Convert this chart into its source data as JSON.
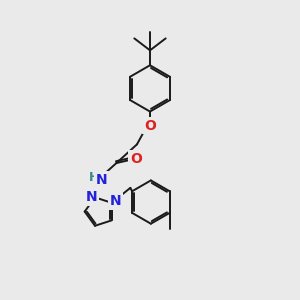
{
  "bg_color": "#eaeaea",
  "bond_color": "#1a1a1a",
  "bond_width": 1.4,
  "fig_size": [
    3.0,
    3.0
  ],
  "dpi": 100,
  "xlim": [
    0.0,
    6.0
  ],
  "ylim": [
    0.2,
    8.2
  ]
}
